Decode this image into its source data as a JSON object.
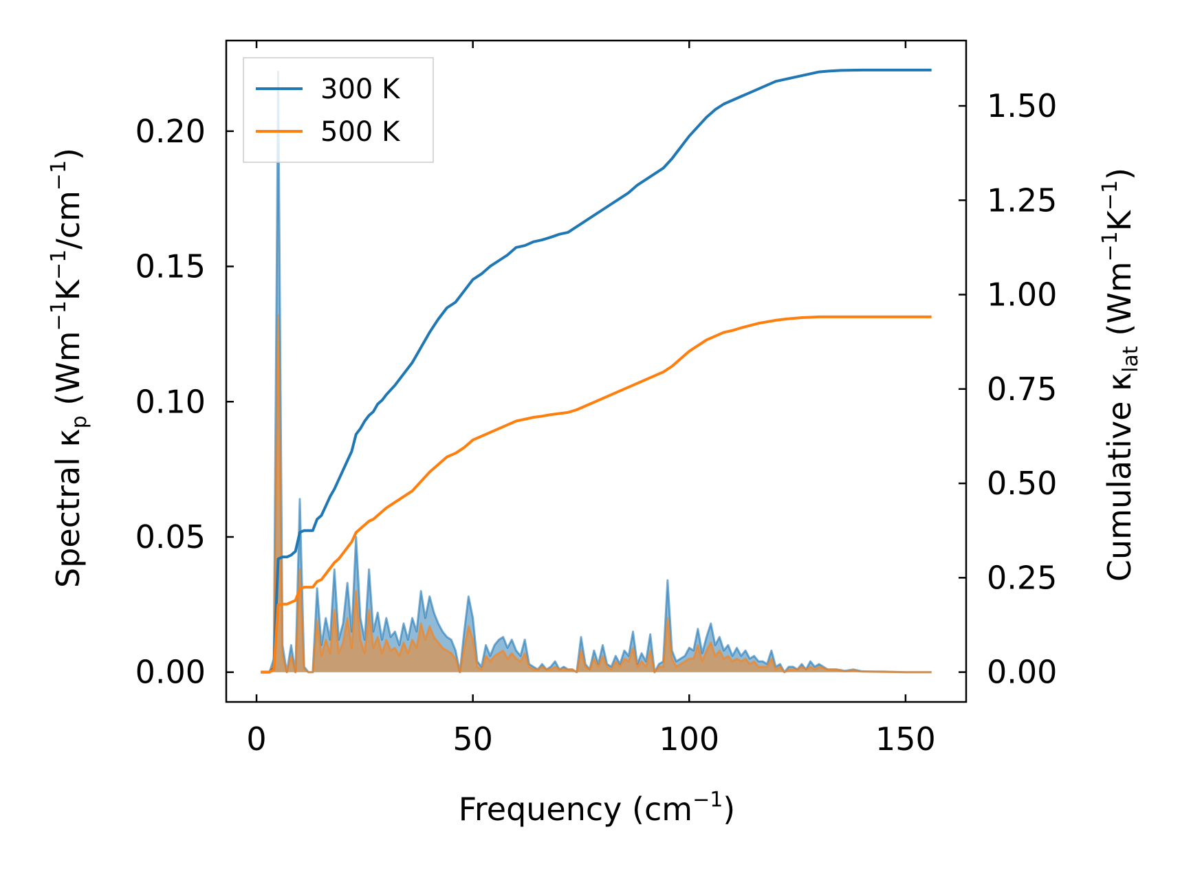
{
  "chart_data": {
    "type": "line",
    "xlabel": "Frequency (cm",
    "xlabel_sup": "−1",
    "xlabel_tail": ")",
    "ylabel_left": {
      "prefix": "Spectral κ",
      "sub": "p",
      "middle": " (Wm",
      "sup1": "−1",
      "k": "K",
      "sup2": "−1",
      "slash": "/cm",
      "sup3": "−1",
      "tail": ")"
    },
    "ylabel_right": {
      "prefix": "Cumulative κ",
      "sub": "lat",
      "middle": " (Wm",
      "sup1": "−1",
      "k": "K",
      "sup2": "−1",
      "tail": ")"
    },
    "xlim": [
      -7,
      164
    ],
    "ylim_left": [
      -0.011,
      0.2335
    ],
    "ylim_right": [
      -0.079,
      1.673
    ],
    "x_ticks": [
      0,
      50,
      100,
      150
    ],
    "x_tick_labels": [
      "0",
      "50",
      "100",
      "150"
    ],
    "y_left_ticks": [
      0.0,
      0.05,
      0.1,
      0.15,
      0.2
    ],
    "y_left_tick_labels": [
      "0.00",
      "0.05",
      "0.10",
      "0.15",
      "0.20"
    ],
    "y_right_ticks": [
      0.0,
      0.25,
      0.5,
      0.75,
      1.0,
      1.25,
      1.5
    ],
    "y_right_tick_labels": [
      "0.00",
      "0.25",
      "0.50",
      "0.75",
      "1.00",
      "1.25",
      "1.50"
    ],
    "legend": {
      "position": "upper-left",
      "entries": [
        "300 K",
        "500 K"
      ]
    },
    "series": [
      {
        "name": "300 K",
        "color": "#1f77b4",
        "spectral_x": [
          1,
          3,
          4,
          5,
          6,
          7,
          8,
          9,
          10,
          11,
          12,
          13,
          14,
          15,
          16,
          17,
          18,
          19,
          20,
          21,
          22,
          23,
          24,
          25,
          26,
          27,
          28,
          29,
          30,
          31,
          32,
          33,
          34,
          35,
          36,
          37,
          38,
          39,
          40,
          41,
          42,
          43,
          44,
          45,
          46,
          47,
          48,
          49,
          50,
          51,
          52,
          53,
          54,
          55,
          56,
          57,
          58,
          59,
          60,
          61,
          62,
          63,
          64,
          65,
          66,
          67,
          68,
          69,
          70,
          71,
          72,
          73,
          74,
          75,
          76,
          77,
          78,
          79,
          80,
          81,
          82,
          83,
          84,
          85,
          86,
          87,
          88,
          89,
          90,
          91,
          92,
          93,
          94,
          95,
          96,
          97,
          98,
          99,
          100,
          101,
          102,
          103,
          104,
          105,
          106,
          107,
          108,
          109,
          110,
          111,
          112,
          113,
          114,
          115,
          116,
          117,
          118,
          119,
          120,
          121,
          122,
          123,
          124,
          125,
          126,
          127,
          128,
          129,
          130,
          132,
          134,
          136,
          138,
          140,
          145,
          150,
          156
        ],
        "spectral_y": [
          0.0,
          0.0,
          0.005,
          0.222,
          0.01,
          0.0,
          0.01,
          0.0,
          0.064,
          0.002,
          0.0,
          0.0,
          0.031,
          0.01,
          0.02,
          0.012,
          0.038,
          0.012,
          0.018,
          0.033,
          0.015,
          0.05,
          0.02,
          0.012,
          0.038,
          0.015,
          0.022,
          0.012,
          0.02,
          0.013,
          0.015,
          0.01,
          0.018,
          0.012,
          0.02,
          0.015,
          0.03,
          0.02,
          0.028,
          0.022,
          0.018,
          0.015,
          0.013,
          0.012,
          0.008,
          0.0,
          0.015,
          0.028,
          0.02,
          0.004,
          0.002,
          0.01,
          0.006,
          0.01,
          0.012,
          0.013,
          0.009,
          0.012,
          0.008,
          0.006,
          0.012,
          0.003,
          0.002,
          0.001,
          0.003,
          0.001,
          0.002,
          0.004,
          0.001,
          0.002,
          0.001,
          0.001,
          0.0,
          0.013,
          0.003,
          0.001,
          0.008,
          0.003,
          0.01,
          0.003,
          0.002,
          0.006,
          0.003,
          0.008,
          0.006,
          0.015,
          0.003,
          0.007,
          0.004,
          0.014,
          0.0,
          0.003,
          0.004,
          0.034,
          0.008,
          0.004,
          0.005,
          0.006,
          0.009,
          0.008,
          0.016,
          0.007,
          0.013,
          0.018,
          0.01,
          0.013,
          0.008,
          0.01,
          0.006,
          0.009,
          0.006,
          0.008,
          0.005,
          0.006,
          0.004,
          0.004,
          0.003,
          0.008,
          0.002,
          0.003,
          0.0,
          0.002,
          0.002,
          0.001,
          0.003,
          0.001,
          0.004,
          0.002,
          0.003,
          0.001,
          0.001,
          0.0005,
          0.001,
          0.0003,
          0.0002,
          0.0,
          0.0
        ],
        "cumulative_x": [
          1,
          3,
          4,
          5,
          6,
          7,
          8,
          9,
          10,
          11,
          12,
          13,
          14,
          15,
          16,
          17,
          18,
          19,
          20,
          21,
          22,
          23,
          24,
          25,
          26,
          27,
          28,
          29,
          30,
          32,
          34,
          36,
          38,
          40,
          42,
          44,
          46,
          48,
          50,
          52,
          54,
          56,
          58,
          60,
          62,
          64,
          66,
          68,
          70,
          72,
          74,
          76,
          78,
          80,
          82,
          84,
          86,
          88,
          90,
          92,
          94,
          96,
          98,
          100,
          102,
          104,
          106,
          108,
          110,
          112,
          114,
          116,
          118,
          120,
          122,
          124,
          126,
          128,
          130,
          132,
          135,
          140,
          145,
          150,
          156
        ],
        "cumulative_y": [
          0.0,
          0.0,
          0.01,
          0.3,
          0.305,
          0.305,
          0.31,
          0.32,
          0.37,
          0.375,
          0.375,
          0.375,
          0.405,
          0.415,
          0.44,
          0.465,
          0.485,
          0.51,
          0.535,
          0.56,
          0.585,
          0.63,
          0.645,
          0.665,
          0.68,
          0.69,
          0.71,
          0.72,
          0.735,
          0.76,
          0.79,
          0.82,
          0.86,
          0.9,
          0.935,
          0.965,
          0.98,
          1.01,
          1.04,
          1.055,
          1.075,
          1.09,
          1.105,
          1.125,
          1.13,
          1.14,
          1.145,
          1.152,
          1.16,
          1.165,
          1.18,
          1.195,
          1.21,
          1.225,
          1.24,
          1.255,
          1.27,
          1.29,
          1.305,
          1.32,
          1.335,
          1.36,
          1.39,
          1.42,
          1.445,
          1.47,
          1.49,
          1.505,
          1.515,
          1.525,
          1.535,
          1.545,
          1.555,
          1.565,
          1.57,
          1.575,
          1.58,
          1.585,
          1.59,
          1.592,
          1.594,
          1.595,
          1.595,
          1.595,
          1.595
        ]
      },
      {
        "name": "500 K",
        "color": "#ff7f0e",
        "spectral_x": [
          1,
          3,
          4,
          5,
          6,
          7,
          8,
          9,
          10,
          11,
          12,
          13,
          14,
          15,
          16,
          17,
          18,
          19,
          20,
          21,
          22,
          23,
          24,
          25,
          26,
          27,
          28,
          29,
          30,
          31,
          32,
          33,
          34,
          35,
          36,
          37,
          38,
          39,
          40,
          41,
          42,
          43,
          44,
          45,
          46,
          47,
          48,
          49,
          50,
          51,
          52,
          53,
          54,
          55,
          56,
          57,
          58,
          59,
          60,
          61,
          62,
          63,
          64,
          65,
          66,
          67,
          68,
          69,
          70,
          71,
          72,
          73,
          74,
          75,
          76,
          77,
          78,
          79,
          80,
          81,
          82,
          83,
          84,
          85,
          86,
          87,
          88,
          89,
          90,
          91,
          92,
          93,
          94,
          95,
          96,
          97,
          98,
          99,
          100,
          101,
          102,
          103,
          104,
          105,
          106,
          107,
          108,
          109,
          110,
          111,
          112,
          113,
          114,
          115,
          116,
          117,
          118,
          119,
          120,
          121,
          122,
          123,
          124,
          125,
          126,
          127,
          128,
          129,
          130,
          132,
          134,
          136,
          138,
          140,
          145,
          150,
          156
        ],
        "spectral_y": [
          0.0,
          0.0,
          0.003,
          0.132,
          0.006,
          0.0,
          0.006,
          0.0,
          0.038,
          0.001,
          0.0,
          0.0,
          0.019,
          0.006,
          0.012,
          0.007,
          0.023,
          0.007,
          0.011,
          0.02,
          0.009,
          0.03,
          0.012,
          0.007,
          0.023,
          0.009,
          0.013,
          0.007,
          0.012,
          0.008,
          0.009,
          0.006,
          0.011,
          0.007,
          0.012,
          0.009,
          0.018,
          0.012,
          0.017,
          0.013,
          0.011,
          0.009,
          0.008,
          0.007,
          0.005,
          0.0,
          0.009,
          0.017,
          0.012,
          0.002,
          0.001,
          0.006,
          0.004,
          0.006,
          0.007,
          0.008,
          0.005,
          0.007,
          0.005,
          0.004,
          0.007,
          0.002,
          0.001,
          0.001,
          0.002,
          0.001,
          0.001,
          0.002,
          0.001,
          0.001,
          0.001,
          0.001,
          0.0,
          0.008,
          0.002,
          0.001,
          0.005,
          0.002,
          0.006,
          0.002,
          0.001,
          0.004,
          0.002,
          0.005,
          0.004,
          0.009,
          0.002,
          0.004,
          0.002,
          0.008,
          0.0,
          0.002,
          0.002,
          0.02,
          0.005,
          0.002,
          0.003,
          0.004,
          0.005,
          0.005,
          0.01,
          0.004,
          0.008,
          0.011,
          0.006,
          0.008,
          0.005,
          0.006,
          0.004,
          0.005,
          0.004,
          0.005,
          0.003,
          0.004,
          0.002,
          0.002,
          0.002,
          0.005,
          0.001,
          0.002,
          0.0,
          0.001,
          0.001,
          0.001,
          0.002,
          0.001,
          0.002,
          0.001,
          0.002,
          0.001,
          0.001,
          0.0003,
          0.0006,
          0.0002,
          0.0001,
          0.0,
          0.0
        ],
        "cumulative_x": [
          1,
          3,
          4,
          5,
          6,
          7,
          8,
          9,
          10,
          11,
          12,
          13,
          14,
          15,
          16,
          17,
          18,
          19,
          20,
          21,
          22,
          23,
          24,
          25,
          26,
          27,
          28,
          29,
          30,
          32,
          34,
          36,
          38,
          40,
          42,
          44,
          46,
          48,
          50,
          52,
          54,
          56,
          58,
          60,
          62,
          64,
          66,
          68,
          70,
          72,
          74,
          76,
          78,
          80,
          82,
          84,
          86,
          88,
          90,
          92,
          94,
          96,
          98,
          100,
          102,
          104,
          106,
          108,
          110,
          112,
          114,
          116,
          118,
          120,
          122,
          124,
          126,
          128,
          130,
          132,
          135,
          140,
          145,
          150,
          156
        ],
        "cumulative_y": [
          0.0,
          0.0,
          0.006,
          0.178,
          0.18,
          0.18,
          0.185,
          0.19,
          0.22,
          0.225,
          0.225,
          0.225,
          0.24,
          0.245,
          0.26,
          0.275,
          0.29,
          0.3,
          0.315,
          0.33,
          0.345,
          0.37,
          0.38,
          0.39,
          0.4,
          0.405,
          0.415,
          0.425,
          0.435,
          0.45,
          0.465,
          0.48,
          0.505,
          0.53,
          0.55,
          0.57,
          0.58,
          0.595,
          0.615,
          0.625,
          0.635,
          0.645,
          0.655,
          0.665,
          0.67,
          0.675,
          0.678,
          0.682,
          0.685,
          0.688,
          0.695,
          0.705,
          0.715,
          0.725,
          0.735,
          0.745,
          0.755,
          0.765,
          0.775,
          0.785,
          0.795,
          0.81,
          0.83,
          0.85,
          0.865,
          0.88,
          0.89,
          0.9,
          0.905,
          0.912,
          0.918,
          0.924,
          0.928,
          0.932,
          0.935,
          0.937,
          0.939,
          0.94,
          0.941,
          0.941,
          0.941,
          0.941,
          0.941,
          0.941,
          0.941
        ]
      }
    ]
  }
}
